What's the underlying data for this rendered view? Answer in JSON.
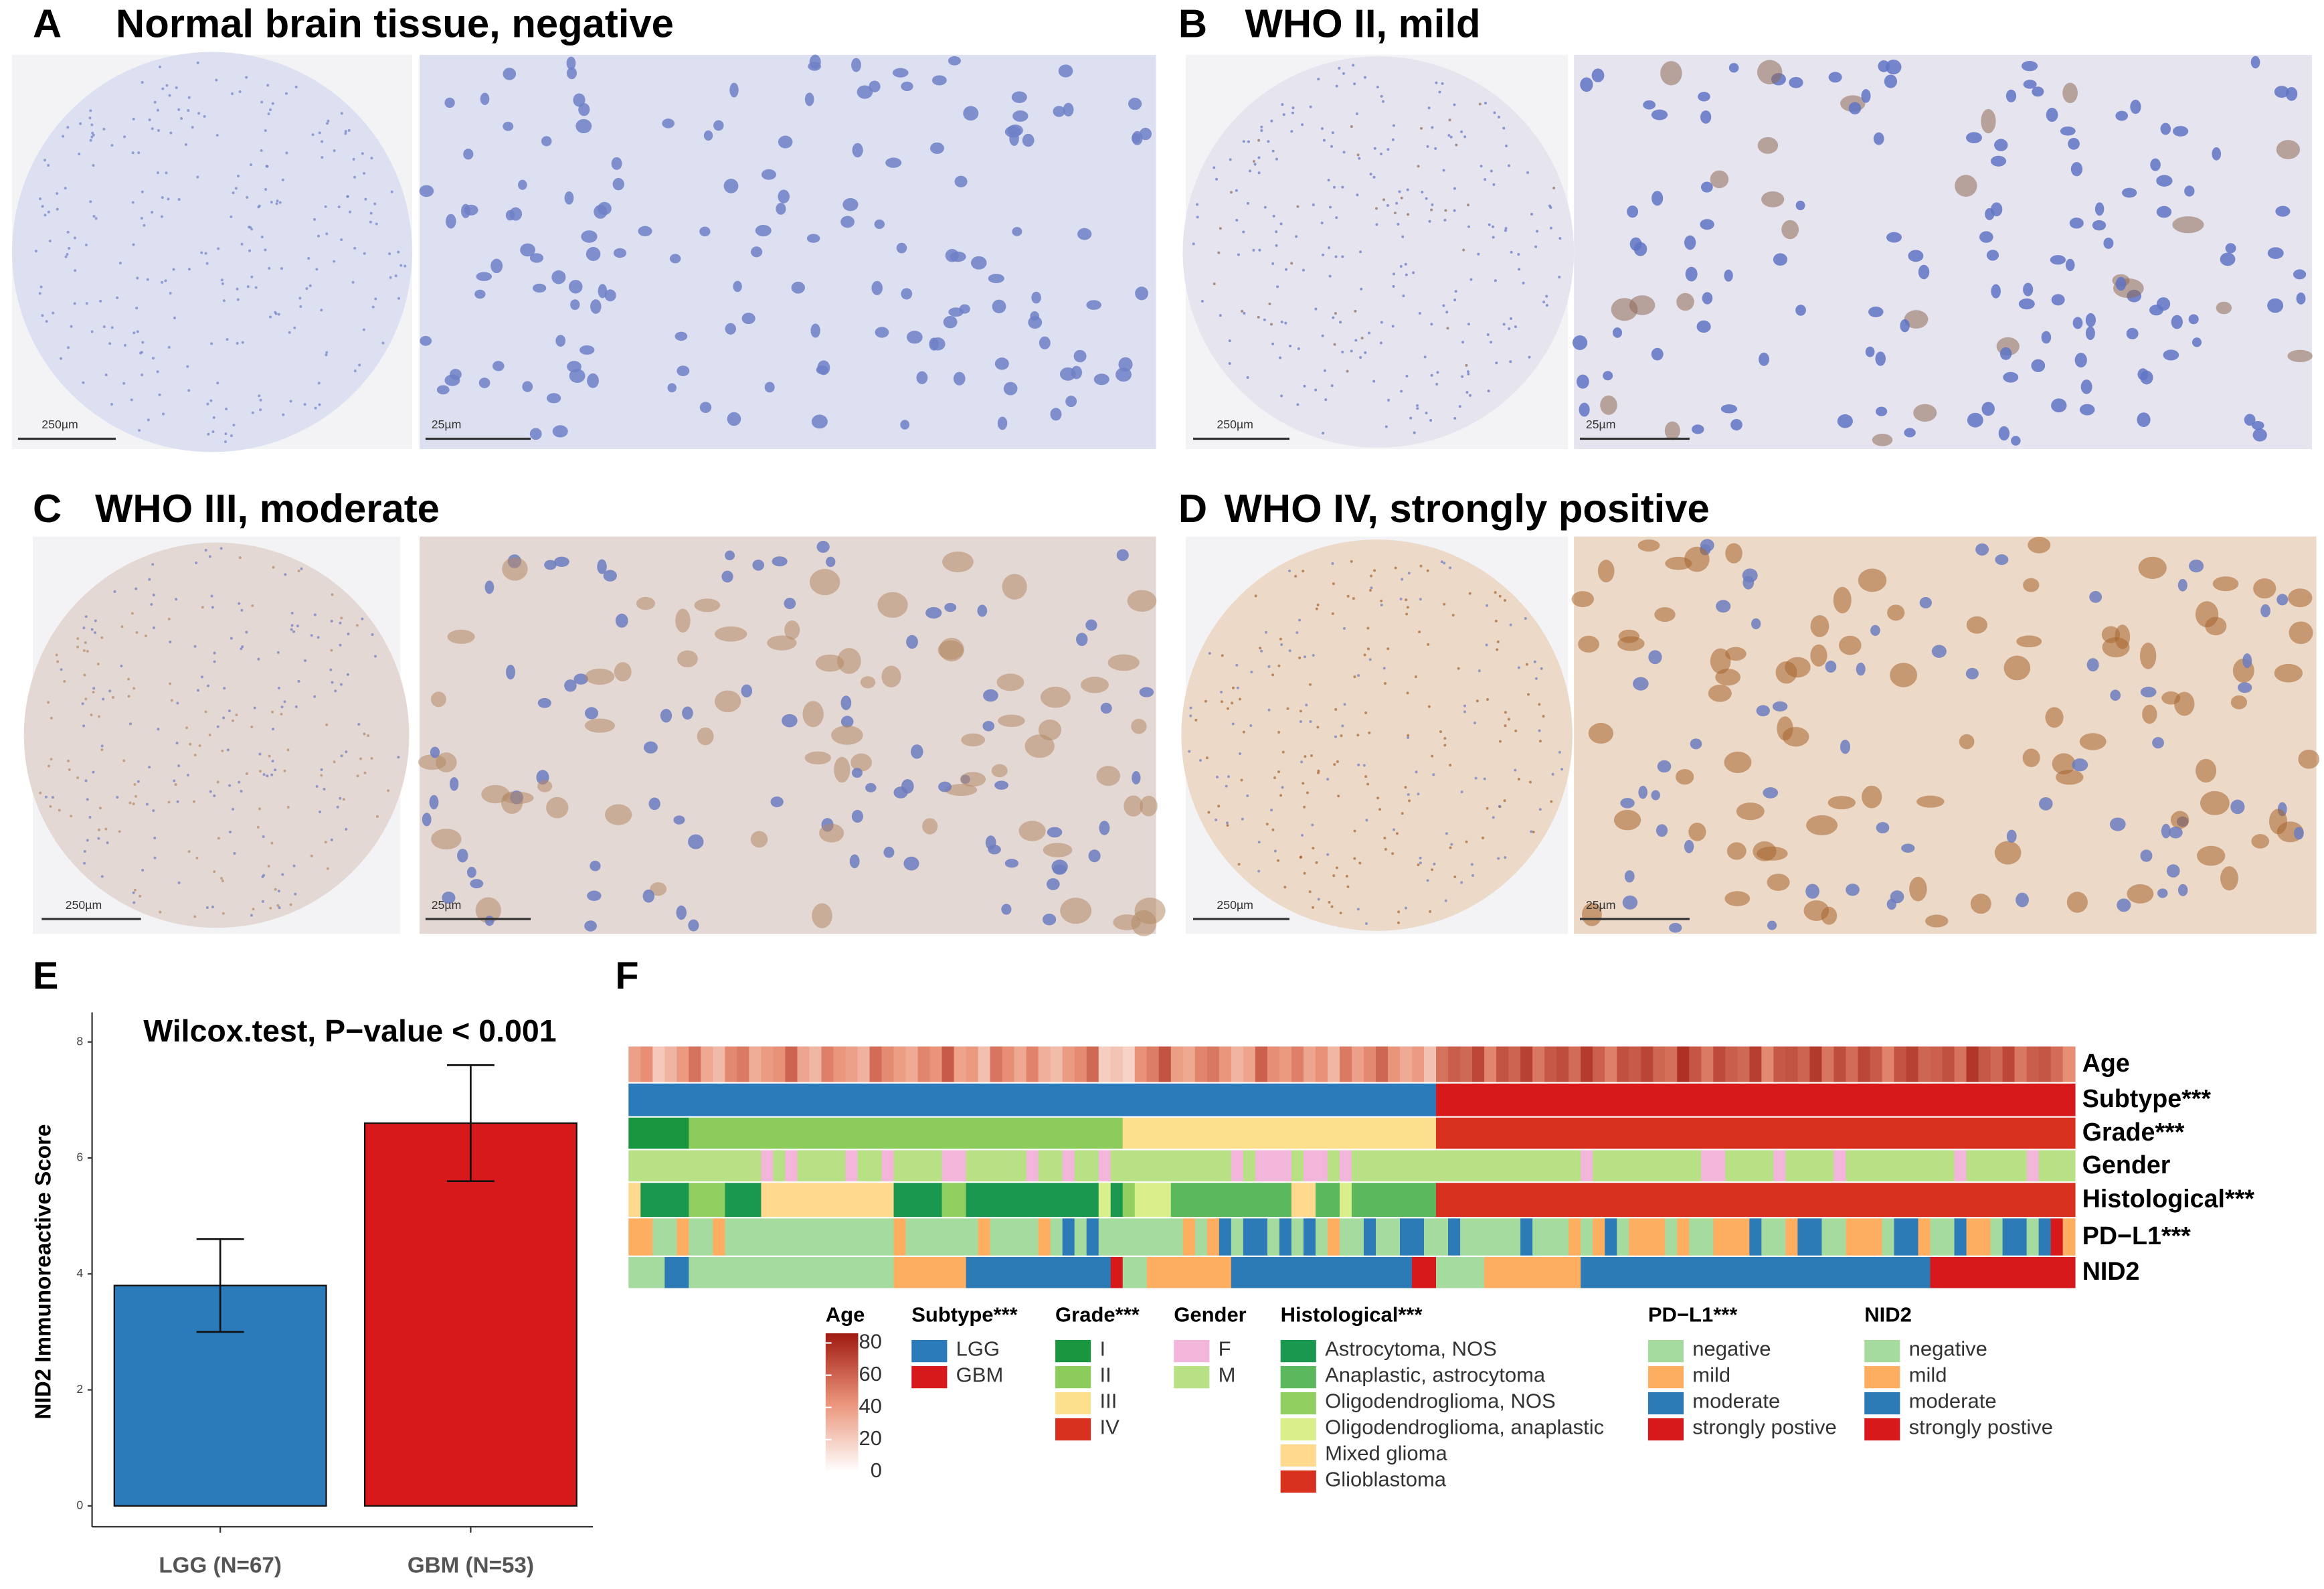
{
  "panels": [
    {
      "letter": "A",
      "title": "Normal brain tissue, negative",
      "scale_bars": [
        "250µm",
        "25µm"
      ]
    },
    {
      "letter": "B",
      "title": "WHO II, mild",
      "scale_bars": [
        "250µm",
        "25µm"
      ]
    },
    {
      "letter": "C",
      "title": "WHO III, moderate",
      "scale_bars": [
        "250µm",
        "25µm"
      ]
    },
    {
      "letter": "D",
      "title": "WHO IV, strongly positive",
      "scale_bars": [
        "250µm",
        "25µm"
      ]
    }
  ],
  "chart_data": [
    {
      "panel": "E",
      "type": "bar",
      "title": "Wilcox.test, P−value < 0.001",
      "ylabel": "NID2 Immunoreactive Score",
      "categories": [
        "LGG (N=67)",
        "GBM (N=53)"
      ],
      "values": [
        3.8,
        6.6
      ],
      "errors": [
        0.8,
        1.0
      ],
      "colors": [
        "#2b7bba",
        "#d7191c"
      ],
      "ylim": [
        -0.36,
        8.51
      ],
      "yticks": [
        0,
        2,
        4,
        6,
        8
      ]
    },
    {
      "panel": "F",
      "type": "heatmap",
      "age_colors": [
        "#ffffff",
        "#ea9479",
        "#a01a10"
      ],
      "agelim": [
        0,
        86
      ],
      "age_ticks": [
        0,
        20,
        40,
        60,
        80
      ],
      "tracks": [
        {
          "name": "Age",
          "values": [
            38,
            45,
            22,
            30,
            41,
            55,
            35,
            28,
            47,
            52,
            33,
            40,
            44,
            60,
            36,
            29,
            50,
            42,
            38,
            31,
            57,
            46,
            39,
            34,
            48,
            43,
            63,
            37,
            41,
            26,
            54,
            45,
            35,
            49,
            32,
            27,
            40,
            46,
            58,
            20,
            24,
            18,
            44,
            51,
            66,
            39,
            35,
            48,
            53,
            42,
            30,
            37,
            61,
            45,
            41,
            50,
            36,
            44,
            29,
            52,
            38,
            47,
            59,
            43,
            34,
            40,
            25,
            55,
            62,
            58,
            70,
            48,
            66,
            60,
            72,
            53,
            64,
            68,
            57,
            74,
            61,
            50,
            67,
            63,
            71,
            59,
            56,
            78,
            65,
            52,
            69,
            62,
            58,
            73,
            47,
            64,
            66,
            60,
            75,
            54,
            68,
            57,
            70,
            63,
            49,
            66,
            72,
            59,
            61,
            67,
            55,
            76,
            64,
            58,
            70,
            53,
            62,
            65,
            57,
            45
          ]
        },
        {
          "name": "Subtype***",
          "levels": [
            {
              "label": "LGG",
              "color": "#2b7bba"
            },
            {
              "label": "GBM",
              "color": "#d7191c"
            }
          ],
          "runs": [
            [
              "LGG",
              67
            ],
            [
              "GBM",
              53
            ]
          ]
        },
        {
          "name": "Grade***",
          "levels": [
            {
              "label": "I",
              "color": "#1a9641"
            },
            {
              "label": "II",
              "color": "#8ccc5c"
            },
            {
              "label": "III",
              "color": "#fde08e"
            },
            {
              "label": "IV",
              "color": "#d7301f"
            }
          ],
          "runs": [
            [
              "I",
              5
            ],
            [
              "II",
              36
            ],
            [
              "III",
              26
            ],
            [
              "IV",
              53
            ]
          ]
        },
        {
          "name": "Gender",
          "levels": [
            {
              "label": "F",
              "color": "#f1b6da"
            },
            {
              "label": "M",
              "color": "#b8e186"
            }
          ],
          "runs": [
            [
              "M",
              11
            ],
            [
              "F",
              1
            ],
            [
              "M",
              1
            ],
            [
              "F",
              1
            ],
            [
              "M",
              4
            ],
            [
              "F",
              1
            ],
            [
              "M",
              2
            ],
            [
              "F",
              1
            ],
            [
              "M",
              4
            ],
            [
              "F",
              2
            ],
            [
              "M",
              5
            ],
            [
              "F",
              1
            ],
            [
              "M",
              2
            ],
            [
              "F",
              1
            ],
            [
              "M",
              2
            ],
            [
              "F",
              1
            ],
            [
              "M",
              10
            ],
            [
              "F",
              1
            ],
            [
              "M",
              1
            ],
            [
              "F",
              3
            ],
            [
              "M",
              1
            ],
            [
              "F",
              2
            ],
            [
              "M",
              1
            ],
            [
              "F",
              1
            ],
            [
              "M",
              2
            ],
            [
              "M",
              5
            ],
            [
              "M",
              12
            ],
            [
              "F",
              1
            ],
            [
              "M",
              9
            ],
            [
              "F",
              2
            ],
            [
              "M",
              4
            ],
            [
              "F",
              1
            ],
            [
              "M",
              4
            ],
            [
              "F",
              1
            ],
            [
              "M",
              9
            ],
            [
              "F",
              1
            ],
            [
              "M",
              5
            ],
            [
              "F",
              1
            ],
            [
              "M",
              3
            ]
          ]
        },
        {
          "name": "Histological***",
          "levels": [
            {
              "label": "Astrocytoma, NOS",
              "color": "#1a9850"
            },
            {
              "label": "Anaplastic, astrocytoma",
              "color": "#5cb85c"
            },
            {
              "label": "Oligodendroglioma, NOS",
              "color": "#91cf60"
            },
            {
              "label": "Oligodendroglioma, anaplastic",
              "color": "#d9ef8b"
            },
            {
              "label": "Mixed glioma",
              "color": "#fed98e"
            },
            {
              "label": "Glioblastoma",
              "color": "#d7301f"
            }
          ],
          "runs": [
            [
              "Mixed glioma",
              1
            ],
            [
              "Astrocytoma, NOS",
              4
            ],
            [
              "Oligodendroglioma, NOS",
              3
            ],
            [
              "Astrocytoma, NOS",
              3
            ],
            [
              "Mixed glioma",
              11
            ],
            [
              "Astrocytoma, NOS",
              4
            ],
            [
              "Oligodendroglioma, NOS",
              2
            ],
            [
              "Astrocytoma, NOS",
              11
            ],
            [
              "Oligodendroglioma, anaplastic",
              1
            ],
            [
              "Astrocytoma, NOS",
              1
            ],
            [
              "Oligodendroglioma, NOS",
              1
            ],
            [
              "Oligodendroglioma, anaplastic",
              3
            ],
            [
              "Anaplastic, astrocytoma",
              10
            ],
            [
              "Mixed glioma",
              2
            ],
            [
              "Anaplastic, astrocytoma",
              2
            ],
            [
              "Oligodendroglioma, anaplastic",
              1
            ],
            [
              "Anaplastic, astrocytoma",
              7
            ],
            [
              "Glioblastoma",
              53
            ]
          ]
        },
        {
          "name": "PD−L1***",
          "levels": [
            {
              "label": "negative",
              "color": "#a6dba0"
            },
            {
              "label": "mild",
              "color": "#fdae61"
            },
            {
              "label": "moderate",
              "color": "#2c7bb6"
            },
            {
              "label": "strongly postive",
              "color": "#d7191c"
            }
          ],
          "runs": [
            [
              "mild",
              2
            ],
            [
              "negative",
              2
            ],
            [
              "mild",
              1
            ],
            [
              "negative",
              2
            ],
            [
              "mild",
              1
            ],
            [
              "negative",
              14
            ],
            [
              "mild",
              1
            ],
            [
              "negative",
              6
            ],
            [
              "mild",
              1
            ],
            [
              "negative",
              4
            ],
            [
              "mild",
              1
            ],
            [
              "negative",
              1
            ],
            [
              "moderate",
              1
            ],
            [
              "negative",
              1
            ],
            [
              "moderate",
              1
            ],
            [
              "negative",
              7
            ],
            [
              "mild",
              1
            ],
            [
              "negative",
              1
            ],
            [
              "mild",
              1
            ],
            [
              "moderate",
              1
            ],
            [
              "negative",
              1
            ],
            [
              "moderate",
              2
            ],
            [
              "negative",
              1
            ],
            [
              "moderate",
              1
            ],
            [
              "negative",
              1
            ],
            [
              "moderate",
              1
            ],
            [
              "negative",
              1
            ],
            [
              "mild",
              1
            ],
            [
              "negative",
              2
            ],
            [
              "moderate",
              1
            ],
            [
              "negative",
              2
            ],
            [
              "moderate",
              2
            ],
            [
              "negative",
              1
            ],
            [
              "negative",
              1
            ],
            [
              "moderate",
              1
            ],
            [
              "negative",
              5
            ],
            [
              "moderate",
              1
            ],
            [
              "negative",
              3
            ],
            [
              "mild",
              1
            ],
            [
              "negative",
              1
            ],
            [
              "mild",
              1
            ],
            [
              "moderate",
              1
            ],
            [
              "negative",
              1
            ],
            [
              "mild",
              3
            ],
            [
              "negative",
              1
            ],
            [
              "mild",
              1
            ],
            [
              "negative",
              2
            ],
            [
              "mild",
              3
            ],
            [
              "moderate",
              1
            ],
            [
              "negative",
              2
            ],
            [
              "mild",
              1
            ],
            [
              "moderate",
              2
            ],
            [
              "negative",
              2
            ],
            [
              "mild",
              3
            ],
            [
              "negative",
              1
            ],
            [
              "moderate",
              2
            ],
            [
              "mild",
              1
            ],
            [
              "negative",
              2
            ],
            [
              "moderate",
              1
            ],
            [
              "mild",
              2
            ],
            [
              "negative",
              1
            ],
            [
              "moderate",
              2
            ],
            [
              "negative",
              1
            ],
            [
              "moderate",
              1
            ],
            [
              "strongly postive",
              1
            ],
            [
              "mild",
              1
            ]
          ]
        },
        {
          "name": "NID2",
          "levels": [
            {
              "label": "negative",
              "color": "#a6dba0"
            },
            {
              "label": "mild",
              "color": "#fdae61"
            },
            {
              "label": "moderate",
              "color": "#2c7bb6"
            },
            {
              "label": "strongly postive",
              "color": "#d7191c"
            }
          ],
          "runs": [
            [
              "negative",
              3
            ],
            [
              "moderate",
              2
            ],
            [
              "negative",
              17
            ],
            [
              "mild",
              6
            ],
            [
              "moderate",
              12
            ],
            [
              "strongly postive",
              1
            ],
            [
              "negative",
              2
            ],
            [
              "mild",
              7
            ],
            [
              "moderate",
              15
            ],
            [
              "strongly postive",
              2
            ],
            [
              "negative",
              4
            ],
            [
              "mild",
              8
            ],
            [
              "moderate",
              29
            ],
            [
              "strongly postive",
              12
            ]
          ]
        }
      ]
    }
  ]
}
